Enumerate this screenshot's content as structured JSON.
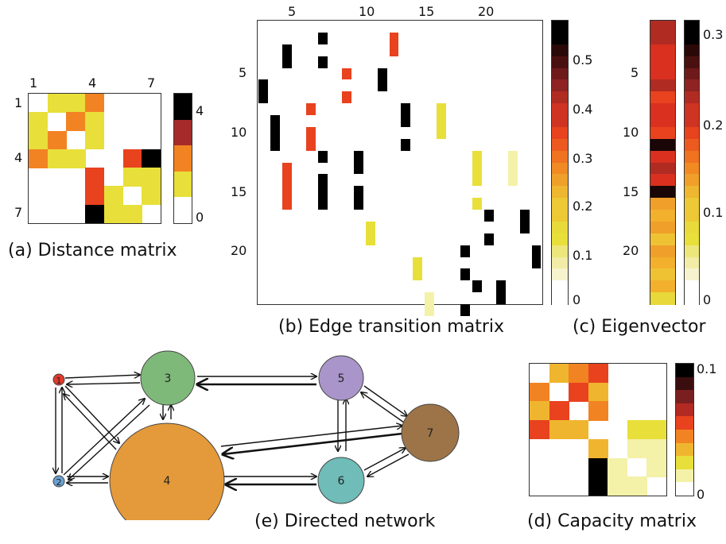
{
  "colors": {
    "scale": [
      "#ffffff",
      "#f4f1a8",
      "#e8df3a",
      "#f0b52e",
      "#f28322",
      "#e8421f",
      "#a62a2a",
      "#000000"
    ],
    "node_red": "#e03a2c",
    "node_blue": "#6a9fd0",
    "node_green": "#7fb97a",
    "node_purple": "#a995c9",
    "node_orange": "#e49a3a",
    "node_teal": "#6fbcb8",
    "node_brown": "#9c7448"
  },
  "panel_a": {
    "caption": "(a) Distance matrix",
    "col_ticks": [
      "1",
      "4",
      "7"
    ],
    "row_ticks": [
      "1",
      "4",
      "7"
    ],
    "cbar_ticks": [
      "4",
      "0"
    ],
    "cells": [
      [
        0,
        2,
        2,
        4,
        0,
        0,
        0
      ],
      [
        2,
        0,
        4,
        2,
        0,
        0,
        0
      ],
      [
        2,
        4,
        0,
        2,
        0,
        0,
        0
      ],
      [
        4,
        2,
        2,
        0,
        0,
        5,
        7
      ],
      [
        0,
        0,
        0,
        5,
        0,
        2,
        2
      ],
      [
        0,
        0,
        0,
        5,
        2,
        0,
        2
      ],
      [
        0,
        0,
        0,
        7,
        2,
        2,
        0
      ]
    ]
  },
  "panel_b": {
    "caption": "(b) Edge transition matrix",
    "col_ticks": [
      "5",
      "10",
      "15",
      "20"
    ],
    "row_ticks": [
      "5",
      "10",
      "15",
      "20"
    ],
    "cbar_ticks": [
      "0.5",
      "0.4",
      "0.3",
      "0.2",
      "0.1",
      "0"
    ],
    "blocks": [
      {
        "c": 5,
        "r1": 1,
        "r2": 1,
        "v": 7
      },
      {
        "c": 11,
        "r1": 1,
        "r2": 2,
        "v": 5
      },
      {
        "c": 2,
        "r1": 2,
        "r2": 3,
        "v": 7
      },
      {
        "c": 5,
        "r1": 3,
        "r2": 3,
        "v": 7
      },
      {
        "c": 7,
        "r1": 4,
        "r2": 4,
        "v": 5
      },
      {
        "c": 10,
        "r1": 4,
        "r2": 5,
        "v": 7
      },
      {
        "c": 0,
        "r1": 5,
        "r2": 6,
        "v": 7
      },
      {
        "c": 7,
        "r1": 6,
        "r2": 6,
        "v": 5
      },
      {
        "c": 4,
        "r1": 7,
        "r2": 7,
        "v": 5
      },
      {
        "c": 12,
        "r1": 7,
        "r2": 8,
        "v": 7
      },
      {
        "c": 15,
        "r1": 7,
        "r2": 9,
        "v": 2
      },
      {
        "c": 1,
        "r1": 8,
        "r2": 10,
        "v": 7
      },
      {
        "c": 4,
        "r1": 9,
        "r2": 10,
        "v": 5
      },
      {
        "c": 12,
        "r1": 10,
        "r2": 10,
        "v": 7
      },
      {
        "c": 5,
        "r1": 11,
        "r2": 11,
        "v": 7
      },
      {
        "c": 8,
        "r1": 11,
        "r2": 12,
        "v": 7
      },
      {
        "c": 18,
        "r1": 11,
        "r2": 13,
        "v": 2
      },
      {
        "c": 21,
        "r1": 11,
        "r2": 13,
        "v": 1
      },
      {
        "c": 2,
        "r1": 12,
        "r2": 15,
        "v": 5
      },
      {
        "c": 5,
        "r1": 13,
        "r2": 15,
        "v": 7
      },
      {
        "c": 8,
        "r1": 14,
        "r2": 15,
        "v": 7
      },
      {
        "c": 18,
        "r1": 15,
        "r2": 15,
        "v": 2
      },
      {
        "c": 19,
        "r1": 16,
        "r2": 16,
        "v": 7
      },
      {
        "c": 22,
        "r1": 16,
        "r2": 17,
        "v": 7
      },
      {
        "c": 9,
        "r1": 17,
        "r2": 18,
        "v": 2
      },
      {
        "c": 19,
        "r1": 18,
        "r2": 18,
        "v": 7
      },
      {
        "c": 17,
        "r1": 19,
        "r2": 19,
        "v": 7
      },
      {
        "c": 23,
        "r1": 19,
        "r2": 20,
        "v": 7
      },
      {
        "c": 13,
        "r1": 20,
        "r2": 21,
        "v": 2
      },
      {
        "c": 17,
        "r1": 21,
        "r2": 21,
        "v": 7
      },
      {
        "c": 18,
        "r1": 22,
        "r2": 22,
        "v": 7
      },
      {
        "c": 20,
        "r1": 22,
        "r2": 23,
        "v": 7
      },
      {
        "c": 14,
        "r1": 23,
        "r2": 24,
        "v": 1
      },
      {
        "c": 17,
        "r1": 24,
        "r2": 24,
        "v": 7
      }
    ]
  },
  "panel_c": {
    "caption": "(c) Eigenvector",
    "row_ticks": [
      "5",
      "10",
      "15",
      "20"
    ],
    "cbar_ticks": [
      "0.3",
      "0.2",
      "0.1",
      "0"
    ],
    "values": [
      0.25,
      0.24,
      0.22,
      0.23,
      0.21,
      0.24,
      0.2,
      0.23,
      0.21,
      0.19,
      0.3,
      0.22,
      0.24,
      0.22,
      0.32,
      0.15,
      0.14,
      0.15,
      0.13,
      0.15,
      0.14,
      0.13,
      0.14,
      0.12
    ]
  },
  "panel_d": {
    "caption": "(d) Capacity matrix",
    "cbar_ticks": [
      "0.1",
      "0"
    ],
    "cells": [
      [
        0,
        3,
        4,
        5,
        0,
        0,
        0
      ],
      [
        4,
        0,
        5,
        3,
        0,
        0,
        0
      ],
      [
        3,
        5,
        0,
        4,
        0,
        0,
        0
      ],
      [
        5,
        3,
        3,
        0,
        0,
        2,
        2
      ],
      [
        0,
        0,
        0,
        3,
        0,
        1,
        1
      ],
      [
        0,
        0,
        0,
        7,
        1,
        0,
        1
      ],
      [
        0,
        0,
        0,
        7,
        1,
        1,
        0
      ]
    ]
  },
  "panel_e": {
    "caption": "(e) Directed network",
    "nodes": [
      "1",
      "2",
      "3",
      "4",
      "5",
      "6",
      "7"
    ]
  }
}
